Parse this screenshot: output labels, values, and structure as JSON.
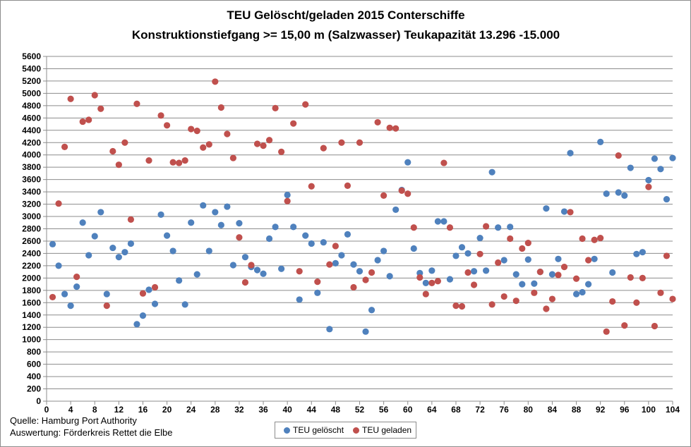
{
  "chart_data": {
    "type": "scatter",
    "title": "TEU Gelöscht/geladen  2015 Conterschiffe",
    "subtitle": "Konstruktionstiefgang >= 15,00 m (Salzwasser)   Teukapazität   13.296 -15.000",
    "xlim": [
      0,
      104
    ],
    "ylim": [
      0,
      5600
    ],
    "x_ticks": [
      0,
      4,
      8,
      12,
      16,
      20,
      24,
      28,
      32,
      36,
      40,
      44,
      48,
      52,
      56,
      60,
      64,
      68,
      72,
      76,
      80,
      84,
      88,
      92,
      96,
      100,
      104
    ],
    "y_ticks": [
      0,
      200,
      400,
      600,
      800,
      1000,
      1200,
      1400,
      1600,
      1800,
      2000,
      2200,
      2400,
      2600,
      2800,
      3000,
      3200,
      3400,
      3600,
      3800,
      4000,
      4200,
      4400,
      4600,
      4800,
      5000,
      5200,
      5400,
      5600
    ],
    "grid": true,
    "legend_position": "bottom",
    "series": [
      {
        "name": "TEU gelöscht",
        "color": "#4f81bd",
        "points": [
          [
            1,
            2550
          ],
          [
            2,
            2200
          ],
          [
            3,
            1740
          ],
          [
            4,
            1550
          ],
          [
            5,
            1860
          ],
          [
            6,
            2900
          ],
          [
            7,
            2370
          ],
          [
            8,
            2680
          ],
          [
            9,
            3070
          ],
          [
            10,
            1740
          ],
          [
            11,
            2490
          ],
          [
            12,
            2340
          ],
          [
            13,
            2420
          ],
          [
            14,
            2560
          ],
          [
            15,
            1250
          ],
          [
            16,
            1390
          ],
          [
            17,
            1810
          ],
          [
            18,
            1580
          ],
          [
            19,
            3030
          ],
          [
            20,
            2690
          ],
          [
            21,
            2440
          ],
          [
            22,
            1960
          ],
          [
            23,
            1570
          ],
          [
            24,
            2900
          ],
          [
            25,
            2060
          ],
          [
            26,
            3180
          ],
          [
            27,
            2440
          ],
          [
            28,
            3070
          ],
          [
            29,
            2860
          ],
          [
            30,
            3160
          ],
          [
            31,
            2210
          ],
          [
            32,
            2890
          ],
          [
            33,
            2340
          ],
          [
            34,
            2180
          ],
          [
            35,
            2130
          ],
          [
            36,
            2070
          ],
          [
            37,
            2640
          ],
          [
            38,
            2830
          ],
          [
            39,
            2150
          ],
          [
            40,
            3350
          ],
          [
            41,
            2830
          ],
          [
            42,
            1650
          ],
          [
            43,
            2690
          ],
          [
            44,
            2560
          ],
          [
            45,
            1760
          ],
          [
            46,
            2580
          ],
          [
            47,
            1170
          ],
          [
            48,
            2240
          ],
          [
            49,
            2370
          ],
          [
            50,
            2710
          ],
          [
            51,
            2220
          ],
          [
            52,
            2110
          ],
          [
            53,
            1130
          ],
          [
            54,
            1480
          ],
          [
            55,
            2290
          ],
          [
            56,
            2440
          ],
          [
            57,
            2030
          ],
          [
            58,
            3110
          ],
          [
            59,
            3430
          ],
          [
            60,
            3880
          ],
          [
            61,
            2480
          ],
          [
            62,
            2080
          ],
          [
            63,
            1920
          ],
          [
            64,
            2120
          ],
          [
            65,
            2920
          ],
          [
            66,
            2920
          ],
          [
            67,
            1980
          ],
          [
            68,
            2360
          ],
          [
            69,
            2500
          ],
          [
            70,
            2400
          ],
          [
            71,
            2110
          ],
          [
            72,
            2650
          ],
          [
            73,
            2120
          ],
          [
            74,
            3720
          ],
          [
            75,
            2820
          ],
          [
            76,
            2290
          ],
          [
            77,
            2830
          ],
          [
            78,
            2060
          ],
          [
            79,
            1900
          ],
          [
            80,
            2300
          ],
          [
            81,
            1910
          ],
          [
            82,
            2100
          ],
          [
            83,
            3130
          ],
          [
            84,
            2060
          ],
          [
            85,
            2310
          ],
          [
            86,
            3080
          ],
          [
            87,
            4030
          ],
          [
            88,
            1740
          ],
          [
            89,
            1770
          ],
          [
            90,
            1900
          ],
          [
            91,
            2310
          ],
          [
            92,
            4210
          ],
          [
            93,
            3370
          ],
          [
            94,
            2090
          ],
          [
            95,
            3390
          ],
          [
            96,
            3340
          ],
          [
            97,
            3790
          ],
          [
            98,
            2390
          ],
          [
            99,
            2420
          ],
          [
            100,
            3590
          ],
          [
            101,
            3940
          ],
          [
            102,
            3770
          ],
          [
            103,
            3280
          ],
          [
            104,
            3950
          ]
        ]
      },
      {
        "name": "TEU geladen",
        "color": "#c0504d",
        "points": [
          [
            1,
            1690
          ],
          [
            2,
            3210
          ],
          [
            3,
            4130
          ],
          [
            4,
            4910
          ],
          [
            5,
            2020
          ],
          [
            6,
            4540
          ],
          [
            7,
            4570
          ],
          [
            8,
            4970
          ],
          [
            9,
            4750
          ],
          [
            10,
            1550
          ],
          [
            11,
            4060
          ],
          [
            12,
            3840
          ],
          [
            13,
            4200
          ],
          [
            14,
            2950
          ],
          [
            15,
            4830
          ],
          [
            16,
            1750
          ],
          [
            17,
            3910
          ],
          [
            18,
            1850
          ],
          [
            19,
            4640
          ],
          [
            20,
            4480
          ],
          [
            21,
            3880
          ],
          [
            22,
            3870
          ],
          [
            23,
            3910
          ],
          [
            24,
            4420
          ],
          [
            25,
            4390
          ],
          [
            26,
            4120
          ],
          [
            27,
            4170
          ],
          [
            28,
            5190
          ],
          [
            29,
            4770
          ],
          [
            30,
            4340
          ],
          [
            31,
            3950
          ],
          [
            32,
            2660
          ],
          [
            33,
            1930
          ],
          [
            34,
            2210
          ],
          [
            35,
            4180
          ],
          [
            36,
            4150
          ],
          [
            37,
            4240
          ],
          [
            38,
            4760
          ],
          [
            39,
            4050
          ],
          [
            40,
            3250
          ],
          [
            41,
            4510
          ],
          [
            42,
            2110
          ],
          [
            43,
            4820
          ],
          [
            44,
            3490
          ],
          [
            45,
            1940
          ],
          [
            46,
            4110
          ],
          [
            47,
            2220
          ],
          [
            48,
            2520
          ],
          [
            49,
            4200
          ],
          [
            50,
            3500
          ],
          [
            51,
            1850
          ],
          [
            52,
            4200
          ],
          [
            53,
            1970
          ],
          [
            54,
            2090
          ],
          [
            55,
            4530
          ],
          [
            56,
            3340
          ],
          [
            57,
            4440
          ],
          [
            58,
            4430
          ],
          [
            59,
            3420
          ],
          [
            60,
            3370
          ],
          [
            61,
            2820
          ],
          [
            62,
            2010
          ],
          [
            63,
            1740
          ],
          [
            64,
            1920
          ],
          [
            65,
            1950
          ],
          [
            66,
            3870
          ],
          [
            67,
            2820
          ],
          [
            68,
            1550
          ],
          [
            69,
            1540
          ],
          [
            70,
            2090
          ],
          [
            71,
            1890
          ],
          [
            72,
            2390
          ],
          [
            73,
            2840
          ],
          [
            74,
            1570
          ],
          [
            75,
            2250
          ],
          [
            76,
            1700
          ],
          [
            77,
            2640
          ],
          [
            78,
            1630
          ],
          [
            79,
            2480
          ],
          [
            80,
            2570
          ],
          [
            81,
            1760
          ],
          [
            82,
            2100
          ],
          [
            83,
            1500
          ],
          [
            84,
            1660
          ],
          [
            85,
            2050
          ],
          [
            86,
            2180
          ],
          [
            87,
            3070
          ],
          [
            88,
            1990
          ],
          [
            89,
            2640
          ],
          [
            90,
            2290
          ],
          [
            91,
            2620
          ],
          [
            92,
            2650
          ],
          [
            93,
            1130
          ],
          [
            94,
            1620
          ],
          [
            95,
            3990
          ],
          [
            96,
            1230
          ],
          [
            97,
            2010
          ],
          [
            98,
            1600
          ],
          [
            99,
            2000
          ],
          [
            100,
            3480
          ],
          [
            101,
            1220
          ],
          [
            102,
            1760
          ],
          [
            103,
            2360
          ],
          [
            104,
            1660
          ]
        ]
      }
    ]
  },
  "notes": {
    "source": "Quelle: Hamburg Port Authority",
    "analysis": "Auswertung: Förderkreis Rettet die Elbe"
  },
  "legend": {
    "items": [
      "TEU gelöscht",
      "TEU geladen"
    ]
  }
}
